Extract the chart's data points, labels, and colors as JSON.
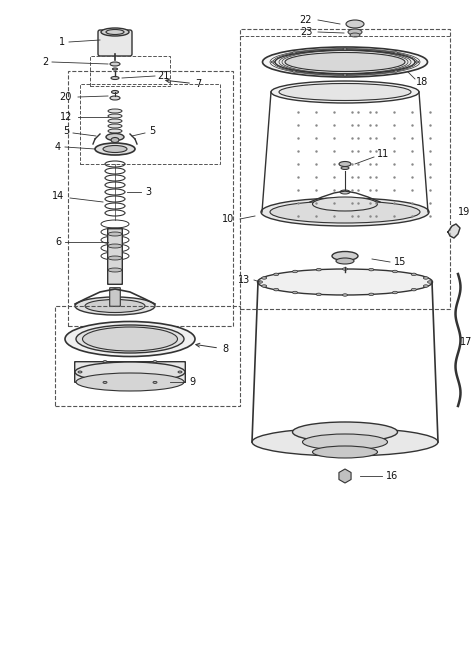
{
  "bg_color": "#ffffff",
  "line_color": "#333333",
  "dashed_color": "#555555",
  "fig_width": 4.74,
  "fig_height": 6.54,
  "dpi": 100
}
